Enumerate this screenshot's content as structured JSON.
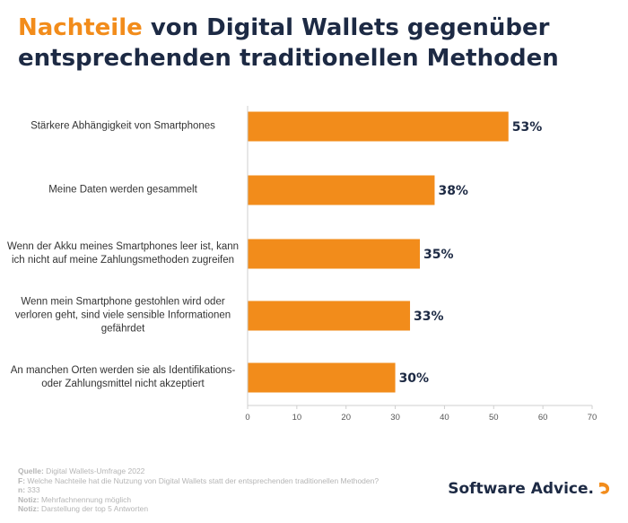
{
  "header": {
    "title_accent": "Nachteile",
    "title_rest": "von Digital Wallets gegenüber entsprechenden traditionellen Methoden"
  },
  "colors": {
    "bar": "#f28c1b",
    "title": "#1d2a44",
    "accent": "#f28c1b"
  },
  "chart_data": {
    "type": "bar",
    "orientation": "horizontal",
    "categories": [
      "Stärkere Abhängigkeit von Smartphones",
      "Meine Daten werden gesammelt",
      "Wenn der Akku meines Smartphones leer ist, kann ich nicht auf meine Zahlungsmethoden zugreifen",
      "Wenn mein Smartphone gestohlen wird oder verloren geht, sind viele sensible Informationen gefährdet",
      "An manchen Orten werden sie als Identifikations- oder Zahlungsmittel nicht akzeptiert"
    ],
    "category_lines": [
      [
        "Stärkere Abhängigkeit von Smartphones"
      ],
      [
        "Meine Daten werden gesammelt"
      ],
      [
        "Wenn der Akku meines Smartphones leer ist, kann",
        "ich nicht auf meine Zahlungsmethoden zugreifen"
      ],
      [
        "Wenn mein Smartphone gestohlen wird oder",
        "verloren geht, sind viele sensible Informationen",
        "gefährdet"
      ],
      [
        "An manchen Orten werden sie als Identifikations-",
        "oder Zahlungsmittel nicht akzeptiert"
      ]
    ],
    "values": [
      53,
      38,
      35,
      33,
      30
    ],
    "value_labels": [
      "53%",
      "38%",
      "35%",
      "33%",
      "30%"
    ],
    "xlim": [
      0,
      70
    ],
    "xticks": [
      0,
      10,
      20,
      30,
      40,
      50,
      60,
      70
    ],
    "grid": false
  },
  "footer": {
    "lines": [
      {
        "key": "Quelle:",
        "text": "Digital Wallets-Umfrage 2022"
      },
      {
        "key": "F:",
        "text": "Welche Nachteile hat die Nutzung von Digital Wallets statt der entsprechenden traditionellen Methoden?"
      },
      {
        "key": "n:",
        "text": "333"
      },
      {
        "key": "Notiz:",
        "text": "Mehrfachnennung möglich"
      },
      {
        "key": "Notiz:",
        "text": "Darstellung der top 5 Antworten"
      }
    ]
  },
  "brand": {
    "name": "Software Advice.",
    "icon": "software-advice-logo-icon"
  }
}
